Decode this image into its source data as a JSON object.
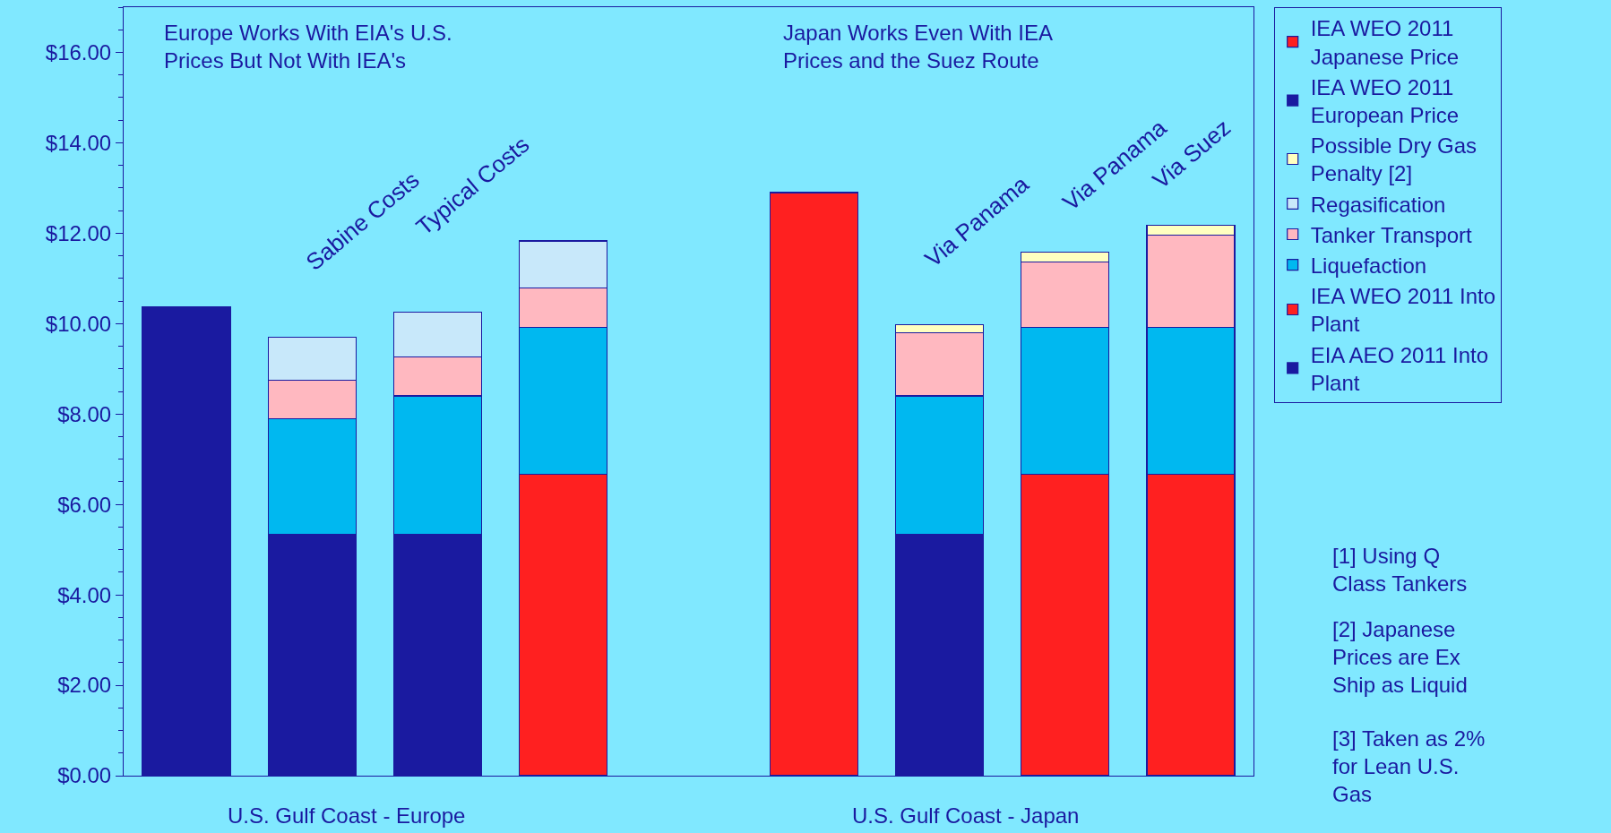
{
  "chart_data": {
    "type": "bar",
    "stacked": true,
    "categories": [
      null,
      null,
      null,
      null,
      null,
      null,
      null,
      null,
      null
    ],
    "series": [
      {
        "name": "EIA AEO 2011 Into Plant",
        "color": "#1a1aa0",
        "values": [
          null,
          5.33,
          5.33,
          null,
          null,
          null,
          5.33,
          null,
          null
        ]
      },
      {
        "name": "IEA WEO 2011 Into Plant",
        "color": "#ff2020",
        "values": [
          null,
          null,
          null,
          6.67,
          null,
          null,
          null,
          6.67,
          6.67
        ]
      },
      {
        "name": "Liquefaction",
        "color": "#00b8f0",
        "values": [
          null,
          2.57,
          3.07,
          3.25,
          null,
          null,
          3.07,
          3.25,
          3.25
        ]
      },
      {
        "name": "Tanker Transport",
        "color": "#ffb8c0",
        "values": [
          null,
          0.84,
          0.86,
          0.87,
          null,
          null,
          1.39,
          1.44,
          2.03
        ]
      },
      {
        "name": "Regasification",
        "color": "#c8e8fa",
        "values": [
          null,
          0.96,
          1.0,
          1.04,
          null,
          null,
          null,
          null,
          null
        ]
      },
      {
        "name": "Possible Dry Gas Penalty [2]",
        "color": "#ffffc0",
        "values": [
          null,
          null,
          null,
          null,
          null,
          null,
          0.18,
          0.22,
          0.23
        ]
      },
      {
        "name": "IEA WEO 2011 European Price",
        "color": "#1a1aa0",
        "values": [
          10.38,
          null,
          null,
          null,
          null,
          null,
          null,
          null,
          null
        ]
      },
      {
        "name": "IEA WEO 2011 Japanese Price",
        "color": "#ff2020",
        "values": [
          null,
          null,
          null,
          null,
          null,
          12.9,
          null,
          null,
          null
        ]
      }
    ],
    "ylim": [
      0,
      17
    ],
    "yticks": [
      {
        "value": 0,
        "label": "$0.00"
      },
      {
        "value": 2,
        "label": "$2.00"
      },
      {
        "value": 4,
        "label": "$4.00"
      },
      {
        "value": 6,
        "label": "$6.00"
      },
      {
        "value": 8,
        "label": "$8.00"
      },
      {
        "value": 10,
        "label": "$10.00"
      },
      {
        "value": 12,
        "label": "$12.00"
      },
      {
        "value": 14,
        "label": "$14.00"
      },
      {
        "value": 16,
        "label": "$16.00"
      }
    ],
    "annotations": [
      "Europe Works With EIA's U.S. Prices But Not With IEA's",
      "Japan Works Even With IEA Prices and the Suez Route",
      "Sabine Costs",
      "Typical Costs",
      "Via Panama",
      "Via Panama",
      "Via Suez",
      "U.S. Gulf Coast - Europe",
      "U.S. Gulf Coast - Japan",
      "[1] Using Q Class Tankers",
      "[2] Japanese Prices are Ex Ship as Liquid",
      "[3] Taken as 2% for Lean U.S. Gas"
    ],
    "legend": "right",
    "grid": false
  }
}
